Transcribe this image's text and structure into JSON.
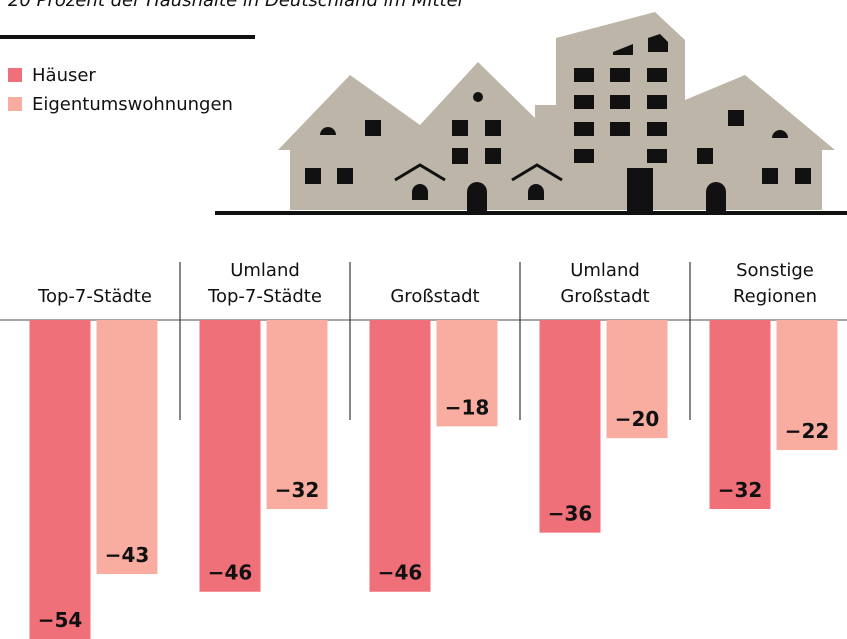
{
  "chart_data": {
    "type": "bar",
    "subtitle": "20 Prozent der Haushalte in Deutschland im Mittel",
    "categories": [
      [
        "Top-7-Städte"
      ],
      [
        "Umland",
        "Top-7-Städte"
      ],
      [
        "Großstadt"
      ],
      [
        "Umland",
        "Großstadt"
      ],
      [
        "Sonstige",
        "Regionen"
      ]
    ],
    "series": [
      {
        "name": "Häuser",
        "color": "#f0707a",
        "values": [
          -54,
          -46,
          -46,
          -36,
          -32
        ],
        "value_labels": [
          "−54",
          "−46",
          "−46",
          "−36",
          "−32"
        ]
      },
      {
        "name": "Eigentumswohnungen",
        "color": "#f9ada0",
        "values": [
          -43,
          -32,
          -18,
          -20,
          -22
        ],
        "value_labels": [
          "−43",
          "−32",
          "−18",
          "−20",
          "−22"
        ]
      }
    ],
    "ylim": [
      -54,
      0
    ]
  }
}
